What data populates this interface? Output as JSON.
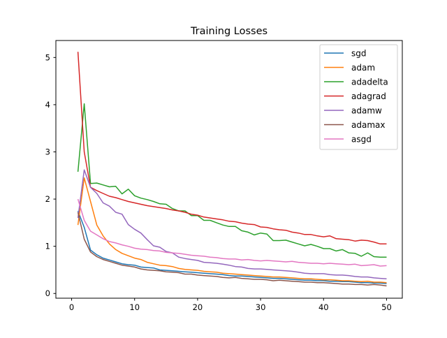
{
  "chart_data": {
    "type": "line",
    "title": "Training Losses",
    "xlabel": "",
    "ylabel": "",
    "xlim": [
      -2.5,
      52.5
    ],
    "ylim": [
      -0.1,
      5.36
    ],
    "xticks": [
      0,
      10,
      20,
      30,
      40,
      50
    ],
    "yticks": [
      0,
      1,
      2,
      3,
      4,
      5
    ],
    "grid": false,
    "legend_position": "top-right",
    "x": [
      1,
      2,
      3,
      4,
      5,
      6,
      7,
      8,
      9,
      10,
      11,
      12,
      13,
      14,
      15,
      16,
      17,
      18,
      19,
      20,
      21,
      22,
      23,
      24,
      25,
      26,
      27,
      28,
      29,
      30,
      31,
      32,
      33,
      34,
      35,
      36,
      37,
      38,
      39,
      40,
      41,
      42,
      43,
      44,
      45,
      46,
      47,
      48,
      49,
      50
    ],
    "series": [
      {
        "name": "sgd",
        "color": "#1f77b4",
        "values": [
          1.75,
          1.4,
          0.92,
          0.82,
          0.75,
          0.71,
          0.67,
          0.63,
          0.61,
          0.6,
          0.56,
          0.55,
          0.54,
          0.5,
          0.49,
          0.48,
          0.47,
          0.46,
          0.45,
          0.44,
          0.43,
          0.42,
          0.41,
          0.4,
          0.38,
          0.37,
          0.37,
          0.36,
          0.35,
          0.34,
          0.33,
          0.32,
          0.32,
          0.31,
          0.3,
          0.29,
          0.28,
          0.28,
          0.27,
          0.27,
          0.26,
          0.26,
          0.25,
          0.25,
          0.24,
          0.23,
          0.23,
          0.22,
          0.22,
          0.21
        ]
      },
      {
        "name": "adam",
        "color": "#ff7f0e",
        "values": [
          1.45,
          2.45,
          1.95,
          1.45,
          1.22,
          1.05,
          0.93,
          0.85,
          0.8,
          0.75,
          0.72,
          0.66,
          0.63,
          0.6,
          0.59,
          0.57,
          0.53,
          0.51,
          0.5,
          0.49,
          0.47,
          0.46,
          0.45,
          0.43,
          0.42,
          0.41,
          0.4,
          0.39,
          0.38,
          0.37,
          0.36,
          0.35,
          0.35,
          0.34,
          0.33,
          0.32,
          0.31,
          0.31,
          0.3,
          0.29,
          0.29,
          0.28,
          0.27,
          0.27,
          0.26,
          0.25,
          0.26,
          0.24,
          0.24,
          0.23
        ]
      },
      {
        "name": "adadelta",
        "color": "#2ca02c",
        "values": [
          2.58,
          4.02,
          2.33,
          2.34,
          2.3,
          2.26,
          2.27,
          2.11,
          2.21,
          2.07,
          2.02,
          1.99,
          1.95,
          1.9,
          1.89,
          1.8,
          1.75,
          1.75,
          1.65,
          1.65,
          1.55,
          1.55,
          1.5,
          1.45,
          1.42,
          1.42,
          1.33,
          1.3,
          1.24,
          1.28,
          1.26,
          1.12,
          1.12,
          1.13,
          1.09,
          1.05,
          1.01,
          1.04,
          1.0,
          0.95,
          0.95,
          0.9,
          0.93,
          0.86,
          0.85,
          0.79,
          0.86,
          0.78,
          0.77,
          0.77
        ]
      },
      {
        "name": "adagrad",
        "color": "#d62728",
        "values": [
          5.12,
          3.0,
          2.25,
          2.18,
          2.12,
          2.06,
          2.03,
          1.99,
          1.95,
          1.92,
          1.89,
          1.86,
          1.84,
          1.82,
          1.8,
          1.77,
          1.75,
          1.72,
          1.68,
          1.66,
          1.62,
          1.6,
          1.58,
          1.56,
          1.53,
          1.52,
          1.49,
          1.47,
          1.46,
          1.41,
          1.4,
          1.37,
          1.35,
          1.34,
          1.3,
          1.28,
          1.25,
          1.25,
          1.22,
          1.2,
          1.22,
          1.16,
          1.15,
          1.14,
          1.11,
          1.13,
          1.12,
          1.09,
          1.05,
          1.05
        ]
      },
      {
        "name": "adamw",
        "color": "#9467bd",
        "values": [
          1.6,
          2.62,
          2.25,
          2.12,
          1.92,
          1.85,
          1.72,
          1.68,
          1.46,
          1.36,
          1.28,
          1.14,
          1.01,
          0.98,
          0.89,
          0.86,
          0.77,
          0.74,
          0.72,
          0.7,
          0.66,
          0.65,
          0.64,
          0.62,
          0.6,
          0.57,
          0.56,
          0.53,
          0.52,
          0.52,
          0.51,
          0.5,
          0.49,
          0.48,
          0.47,
          0.45,
          0.43,
          0.42,
          0.42,
          0.42,
          0.4,
          0.39,
          0.39,
          0.38,
          0.36,
          0.35,
          0.35,
          0.33,
          0.32,
          0.31
        ]
      },
      {
        "name": "adamax",
        "color": "#8c564b",
        "values": [
          1.72,
          1.15,
          0.88,
          0.78,
          0.72,
          0.68,
          0.64,
          0.6,
          0.58,
          0.56,
          0.52,
          0.5,
          0.49,
          0.48,
          0.46,
          0.45,
          0.44,
          0.41,
          0.41,
          0.39,
          0.38,
          0.37,
          0.36,
          0.34,
          0.33,
          0.34,
          0.32,
          0.31,
          0.3,
          0.3,
          0.29,
          0.27,
          0.28,
          0.27,
          0.26,
          0.25,
          0.24,
          0.24,
          0.23,
          0.23,
          0.22,
          0.21,
          0.2,
          0.2,
          0.19,
          0.19,
          0.18,
          0.19,
          0.18,
          0.16
        ]
      },
      {
        "name": "asgd",
        "color": "#e377c2",
        "values": [
          2.0,
          1.55,
          1.32,
          1.24,
          1.16,
          1.1,
          1.07,
          1.03,
          1.0,
          0.96,
          0.94,
          0.93,
          0.91,
          0.9,
          0.87,
          0.86,
          0.85,
          0.83,
          0.81,
          0.8,
          0.79,
          0.77,
          0.76,
          0.74,
          0.73,
          0.73,
          0.71,
          0.72,
          0.7,
          0.69,
          0.7,
          0.69,
          0.68,
          0.67,
          0.68,
          0.66,
          0.65,
          0.64,
          0.64,
          0.63,
          0.64,
          0.63,
          0.62,
          0.61,
          0.62,
          0.59,
          0.6,
          0.61,
          0.58,
          0.59
        ]
      }
    ]
  }
}
